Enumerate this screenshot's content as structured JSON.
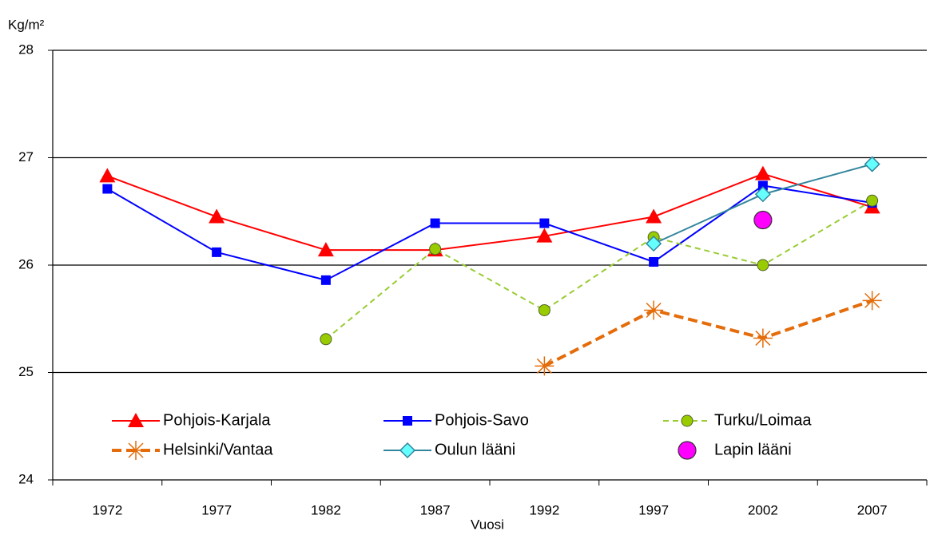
{
  "chart_data": {
    "type": "line",
    "y_label": "Kg/m²",
    "x_label": "Vuosi",
    "categories": [
      "1972",
      "1977",
      "1982",
      "1987",
      "1992",
      "1997",
      "2002",
      "2007"
    ],
    "ylim": [
      24,
      28
    ],
    "yticks": [
      24,
      25,
      26,
      27,
      28
    ],
    "grid": true,
    "series": [
      {
        "name": "Pohjois-Karjala",
        "color": "#ff0000",
        "marker": "triangle",
        "dash": false,
        "line": true,
        "values": [
          26.83,
          26.45,
          26.14,
          26.14,
          26.27,
          26.45,
          26.85,
          26.54
        ]
      },
      {
        "name": "Pohjois-Savo",
        "color": "#0000ff",
        "marker": "square",
        "dash": false,
        "line": true,
        "values": [
          26.71,
          26.12,
          25.86,
          26.39,
          26.39,
          26.03,
          26.74,
          26.58
        ]
      },
      {
        "name": "Turku/Loimaa",
        "color": "#99cc33",
        "marker": "circle",
        "dash": true,
        "line": true,
        "values": [
          null,
          null,
          25.31,
          26.15,
          25.58,
          26.26,
          26.0,
          26.6
        ]
      },
      {
        "name": "Helsinki/Vantaa",
        "color": "#e46c0a",
        "marker": "star",
        "dash": true,
        "line": true,
        "values": [
          null,
          null,
          null,
          null,
          25.06,
          25.58,
          25.32,
          25.67
        ]
      },
      {
        "name": "Oulun lääni",
        "color": "#31859c",
        "marker": "diamond",
        "dash": false,
        "line": true,
        "values": [
          null,
          null,
          null,
          null,
          null,
          26.2,
          26.66,
          26.94
        ]
      },
      {
        "name": "Lapin lääni",
        "color": "#ff00ff",
        "marker": "bigcircle",
        "dash": false,
        "line": false,
        "values": [
          null,
          null,
          null,
          null,
          null,
          null,
          26.42,
          null
        ]
      }
    ]
  }
}
